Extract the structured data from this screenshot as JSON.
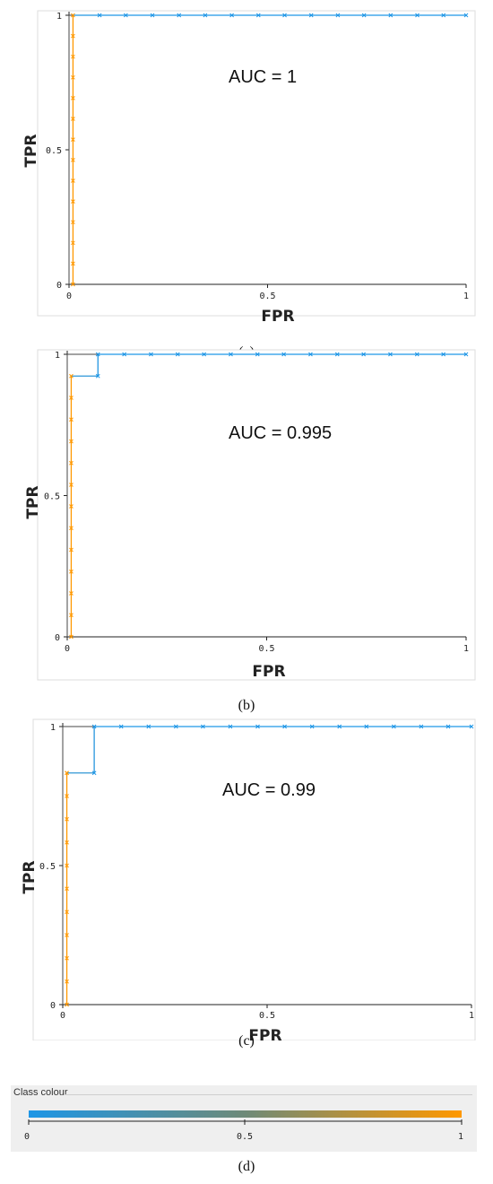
{
  "chart_data": [
    {
      "type": "line",
      "panel": "a",
      "xlabel": "FPR",
      "ylabel": "TPR",
      "xlim": [
        0,
        1
      ],
      "ylim": [
        0,
        1
      ],
      "x_ticks": [
        "0",
        "0.5",
        "1"
      ],
      "y_ticks": [
        "0",
        "0.5",
        "1"
      ],
      "annotation": "AUC = 1",
      "reference_x": [
        0,
        0,
        1
      ],
      "reference_y": [
        0,
        1,
        1
      ],
      "x": [
        0.01,
        0.01,
        0.01,
        0.01,
        0.01,
        0.01,
        0.01,
        0.01,
        0.01,
        0.01,
        0.01,
        0.01,
        0.01,
        0.01,
        0.077,
        0.143,
        0.21,
        0.277,
        0.343,
        0.41,
        0.477,
        0.543,
        0.61,
        0.677,
        0.743,
        0.81,
        0.877,
        0.943,
        1.0
      ],
      "y": [
        0,
        0.077,
        0.154,
        0.231,
        0.308,
        0.385,
        0.462,
        0.538,
        0.615,
        0.692,
        0.769,
        0.846,
        0.923,
        1.0,
        1.0,
        1.0,
        1.0,
        1.0,
        1.0,
        1.0,
        1.0,
        1.0,
        1.0,
        1.0,
        1.0,
        1.0,
        1.0,
        1.0,
        1.0
      ],
      "caption": "(a)"
    },
    {
      "type": "line",
      "panel": "b",
      "xlabel": "FPR",
      "ylabel": "TPR",
      "xlim": [
        0,
        1
      ],
      "ylim": [
        0,
        1
      ],
      "x_ticks": [
        "0",
        "0.5",
        "1"
      ],
      "y_ticks": [
        "0",
        "0.5",
        "1"
      ],
      "annotation": "AUC = 0.995",
      "reference_x": [
        0,
        0,
        1
      ],
      "reference_y": [
        0,
        1,
        1
      ],
      "x": [
        0.01,
        0.01,
        0.01,
        0.01,
        0.01,
        0.01,
        0.01,
        0.01,
        0.01,
        0.01,
        0.01,
        0.01,
        0.01,
        0.077,
        0.077,
        0.143,
        0.21,
        0.277,
        0.343,
        0.41,
        0.477,
        0.543,
        0.61,
        0.677,
        0.743,
        0.81,
        0.877,
        0.943,
        1.0
      ],
      "y": [
        0,
        0.077,
        0.154,
        0.231,
        0.308,
        0.385,
        0.462,
        0.538,
        0.615,
        0.692,
        0.769,
        0.846,
        0.923,
        0.923,
        1.0,
        1.0,
        1.0,
        1.0,
        1.0,
        1.0,
        1.0,
        1.0,
        1.0,
        1.0,
        1.0,
        1.0,
        1.0,
        1.0,
        1.0
      ],
      "caption": "(b)"
    },
    {
      "type": "line",
      "panel": "c",
      "xlabel": "FPR",
      "ylabel": "TPR",
      "xlim": [
        0,
        1
      ],
      "ylim": [
        0,
        1
      ],
      "x_ticks": [
        "0",
        "0.5",
        "1"
      ],
      "y_ticks": [
        "0",
        "0.5",
        "1"
      ],
      "annotation": "AUC = 0.99",
      "reference_x": [
        0,
        0,
        1
      ],
      "reference_y": [
        0,
        1,
        1
      ],
      "x": [
        0.01,
        0.01,
        0.01,
        0.01,
        0.01,
        0.01,
        0.01,
        0.01,
        0.01,
        0.01,
        0.01,
        0.01,
        0.077,
        0.077,
        0.143,
        0.21,
        0.277,
        0.343,
        0.41,
        0.477,
        0.543,
        0.61,
        0.677,
        0.743,
        0.81,
        0.877,
        0.943,
        1.0
      ],
      "y": [
        0,
        0.083,
        0.167,
        0.25,
        0.333,
        0.417,
        0.5,
        0.583,
        0.667,
        0.75,
        0.833,
        0.833,
        0.833,
        1.0,
        1.0,
        1.0,
        1.0,
        1.0,
        1.0,
        1.0,
        1.0,
        1.0,
        1.0,
        1.0,
        1.0,
        1.0,
        1.0,
        1.0
      ],
      "caption": "(c)"
    }
  ],
  "legend": {
    "title": "Class colour",
    "ticks": [
      "0",
      "0.5",
      "1"
    ],
    "caption": "(d)",
    "color_low": "#1e96e6",
    "color_mid": "#6e8a78",
    "color_high": "#ff9800"
  },
  "colors": {
    "orange": "#ff9800",
    "blue": "#1e96e6",
    "reference": "#444444"
  }
}
